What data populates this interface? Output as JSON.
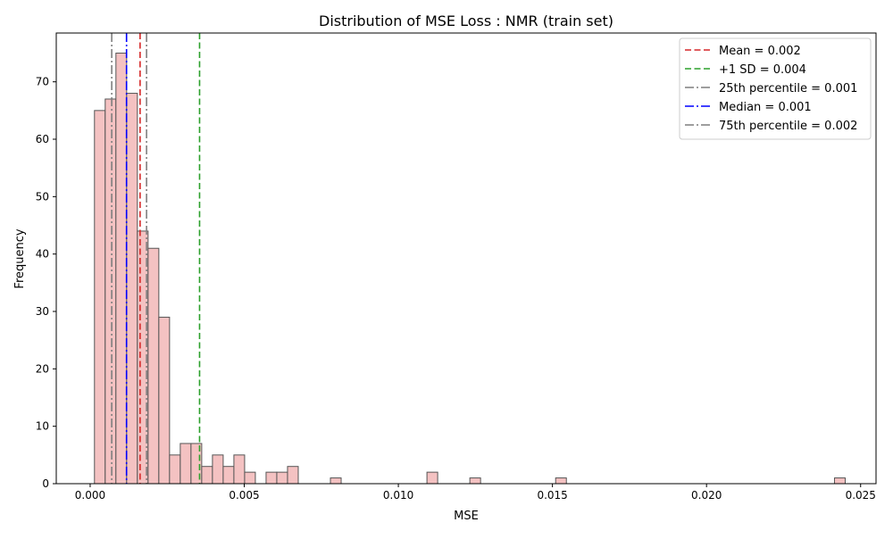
{
  "chart_data": {
    "type": "histogram",
    "title": "Distribution of MSE Loss : NMR (train set)",
    "xlabel": "MSE",
    "ylabel": "Frequency",
    "xlim": [
      -0.0011,
      0.0255
    ],
    "ylim": [
      0,
      78.5
    ],
    "grid": false,
    "legend_position": "top-right",
    "x_ticks": [
      {
        "value": 0.0,
        "label": "0.000"
      },
      {
        "value": 0.005,
        "label": "0.005"
      },
      {
        "value": 0.01,
        "label": "0.010"
      },
      {
        "value": 0.015,
        "label": "0.015"
      },
      {
        "value": 0.02,
        "label": "0.020"
      },
      {
        "value": 0.025,
        "label": "0.025"
      }
    ],
    "y_ticks": [
      {
        "value": 0,
        "label": "0"
      },
      {
        "value": 10,
        "label": "10"
      },
      {
        "value": 20,
        "label": "20"
      },
      {
        "value": 30,
        "label": "30"
      },
      {
        "value": 40,
        "label": "40"
      },
      {
        "value": 50,
        "label": "50"
      },
      {
        "value": 60,
        "label": "60"
      },
      {
        "value": 70,
        "label": "70"
      }
    ],
    "bin_width": 0.000348,
    "bars": [
      {
        "x0": 0.00014,
        "count": 65
      },
      {
        "x0": 0.000488,
        "count": 67
      },
      {
        "x0": 0.000836,
        "count": 75
      },
      {
        "x0": 0.001184,
        "count": 68
      },
      {
        "x0": 0.001532,
        "count": 44
      },
      {
        "x0": 0.00188,
        "count": 41
      },
      {
        "x0": 0.002228,
        "count": 29
      },
      {
        "x0": 0.002576,
        "count": 5
      },
      {
        "x0": 0.002924,
        "count": 7
      },
      {
        "x0": 0.003272,
        "count": 7
      },
      {
        "x0": 0.00362,
        "count": 3
      },
      {
        "x0": 0.003968,
        "count": 5
      },
      {
        "x0": 0.004316,
        "count": 3
      },
      {
        "x0": 0.004664,
        "count": 5
      },
      {
        "x0": 0.005012,
        "count": 2
      },
      {
        "x0": 0.005708,
        "count": 2
      },
      {
        "x0": 0.006056,
        "count": 2
      },
      {
        "x0": 0.006404,
        "count": 3
      },
      {
        "x0": 0.007796,
        "count": 1
      },
      {
        "x0": 0.010928,
        "count": 2
      },
      {
        "x0": 0.01232,
        "count": 1
      },
      {
        "x0": 0.015104,
        "count": 1
      },
      {
        "x0": 0.024152,
        "count": 1
      }
    ],
    "bar_fill": "#f4c2c2",
    "bar_edge": "#555555",
    "reference_lines": [
      {
        "name": "Mean = 0.002",
        "x": 0.00162,
        "color": "#d62728",
        "style": "dashed"
      },
      {
        "name": "+1 SD = 0.004",
        "x": 0.00355,
        "color": "#2ca02c",
        "style": "dashed"
      },
      {
        "name": "25th percentile = 0.001",
        "x": 0.0007,
        "color": "#7f7f7f",
        "style": "dashdot"
      },
      {
        "name": "Median = 0.001",
        "x": 0.00118,
        "color": "#0000ff",
        "style": "dashdot"
      },
      {
        "name": "75th percentile = 0.002",
        "x": 0.00183,
        "color": "#7f7f7f",
        "style": "dashdot"
      }
    ]
  }
}
